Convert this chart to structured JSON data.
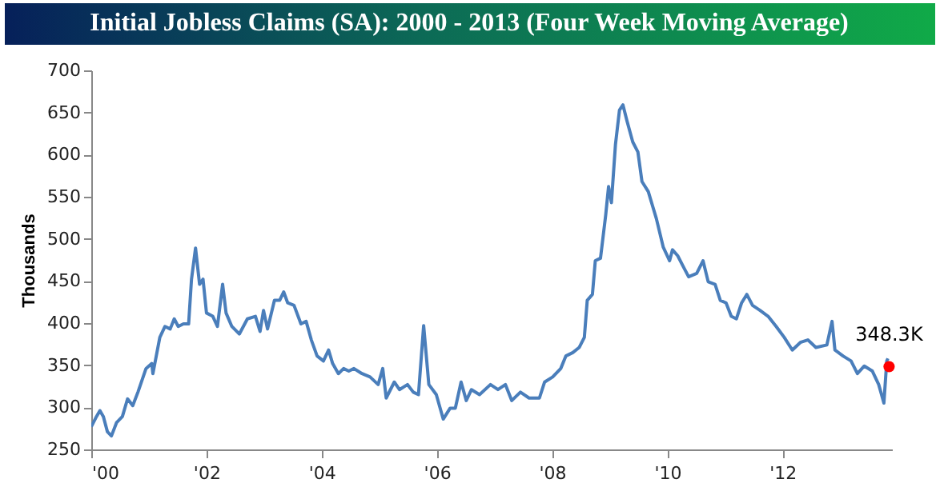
{
  "chart_data": {
    "type": "line",
    "title": "Initial Jobless Claims (SA): 2000 - 2013 (Four Week Moving Average)",
    "ylabel": "Thousands",
    "xlim": [
      2000,
      2013.9
    ],
    "xticks": [
      {
        "value": 2000,
        "label": "'00"
      },
      {
        "value": 2002,
        "label": "'02"
      },
      {
        "value": 2004,
        "label": "'04"
      },
      {
        "value": 2006,
        "label": "'06"
      },
      {
        "value": 2008,
        "label": "'08"
      },
      {
        "value": 2010,
        "label": "'10"
      },
      {
        "value": 2012,
        "label": "'12"
      }
    ],
    "ylim": [
      250,
      700
    ],
    "yticks": [
      250,
      300,
      350,
      400,
      450,
      500,
      550,
      600,
      650,
      700
    ],
    "series": [
      {
        "color": "#4a7ebb",
        "x": [
          2000.0,
          2000.09,
          2000.15,
          2000.21,
          2000.28,
          2000.35,
          2000.44,
          2000.54,
          2000.63,
          2000.72,
          2000.81,
          2000.95,
          2001.05,
          2001.07,
          2001.19,
          2001.28,
          2001.37,
          2001.44,
          2001.51,
          2001.6,
          2001.69,
          2001.74,
          2001.81,
          2001.88,
          2001.94,
          2002.0,
          2002.11,
          2002.19,
          2002.28,
          2002.34,
          2002.44,
          2002.57,
          2002.71,
          2002.85,
          2002.93,
          2002.99,
          2003.06,
          2003.18,
          2003.27,
          2003.34,
          2003.41,
          2003.52,
          2003.64,
          2003.73,
          2003.82,
          2003.92,
          2004.03,
          2004.12,
          2004.19,
          2004.29,
          2004.38,
          2004.47,
          2004.56,
          2004.7,
          2004.84,
          2004.98,
          2005.06,
          2005.12,
          2005.26,
          2005.35,
          2005.49,
          2005.59,
          2005.68,
          2005.77,
          2005.86,
          2005.99,
          2006.11,
          2006.23,
          2006.32,
          2006.42,
          2006.51,
          2006.6,
          2006.74,
          2006.93,
          2007.06,
          2007.19,
          2007.3,
          2007.45,
          2007.6,
          2007.78,
          2007.87,
          2008.01,
          2008.15,
          2008.24,
          2008.36,
          2008.47,
          2008.56,
          2008.61,
          2008.7,
          2008.75,
          2008.84,
          2008.93,
          2008.98,
          2009.03,
          2009.1,
          2009.17,
          2009.23,
          2009.3,
          2009.4,
          2009.49,
          2009.56,
          2009.67,
          2009.81,
          2009.93,
          2010.04,
          2010.09,
          2010.18,
          2010.27,
          2010.37,
          2010.51,
          2010.62,
          2010.71,
          2010.83,
          2010.92,
          2011.02,
          2011.11,
          2011.2,
          2011.29,
          2011.38,
          2011.48,
          2011.61,
          2011.75,
          2011.89,
          2012.03,
          2012.17,
          2012.31,
          2012.44,
          2012.58,
          2012.77,
          2012.86,
          2012.91,
          2013.05,
          2013.19,
          2013.3,
          2013.42,
          2013.56,
          2013.67,
          2013.76,
          2013.81,
          2013.83
        ],
        "values": [
          277,
          289,
          296,
          289,
          271,
          266,
          282,
          289,
          310,
          302,
          318,
          346,
          352,
          340,
          383,
          396,
          393,
          405,
          396,
          399,
          399,
          452,
          489,
          446,
          452,
          412,
          408,
          396,
          446,
          412,
          396,
          387,
          405,
          408,
          390,
          415,
          393,
          427,
          427,
          437,
          424,
          421,
          399,
          402,
          380,
          361,
          355,
          368,
          352,
          340,
          346,
          343,
          346,
          340,
          336,
          327,
          346,
          311,
          330,
          321,
          327,
          318,
          315,
          397,
          327,
          315,
          286,
          299,
          299,
          330,
          308,
          321,
          315,
          327,
          321,
          327,
          308,
          318,
          311,
          311,
          330,
          336,
          346,
          361,
          365,
          371,
          383,
          427,
          434,
          474,
          477,
          528,
          562,
          543,
          612,
          653,
          659,
          640,
          615,
          603,
          568,
          556,
          524,
          490,
          474,
          487,
          480,
          468,
          455,
          459,
          474,
          449,
          446,
          427,
          424,
          408,
          405,
          424,
          434,
          421,
          415,
          408,
          396,
          383,
          368,
          377,
          380,
          371,
          374,
          402,
          368,
          361,
          355,
          340,
          349,
          343,
          327,
          305,
          355,
          358
        ]
      },
      {
        "type": "scatter",
        "color": "#ff0000",
        "x": [
          2013.85
        ],
        "values": [
          348.3
        ],
        "value_labels": [
          "348.3K"
        ]
      }
    ]
  }
}
